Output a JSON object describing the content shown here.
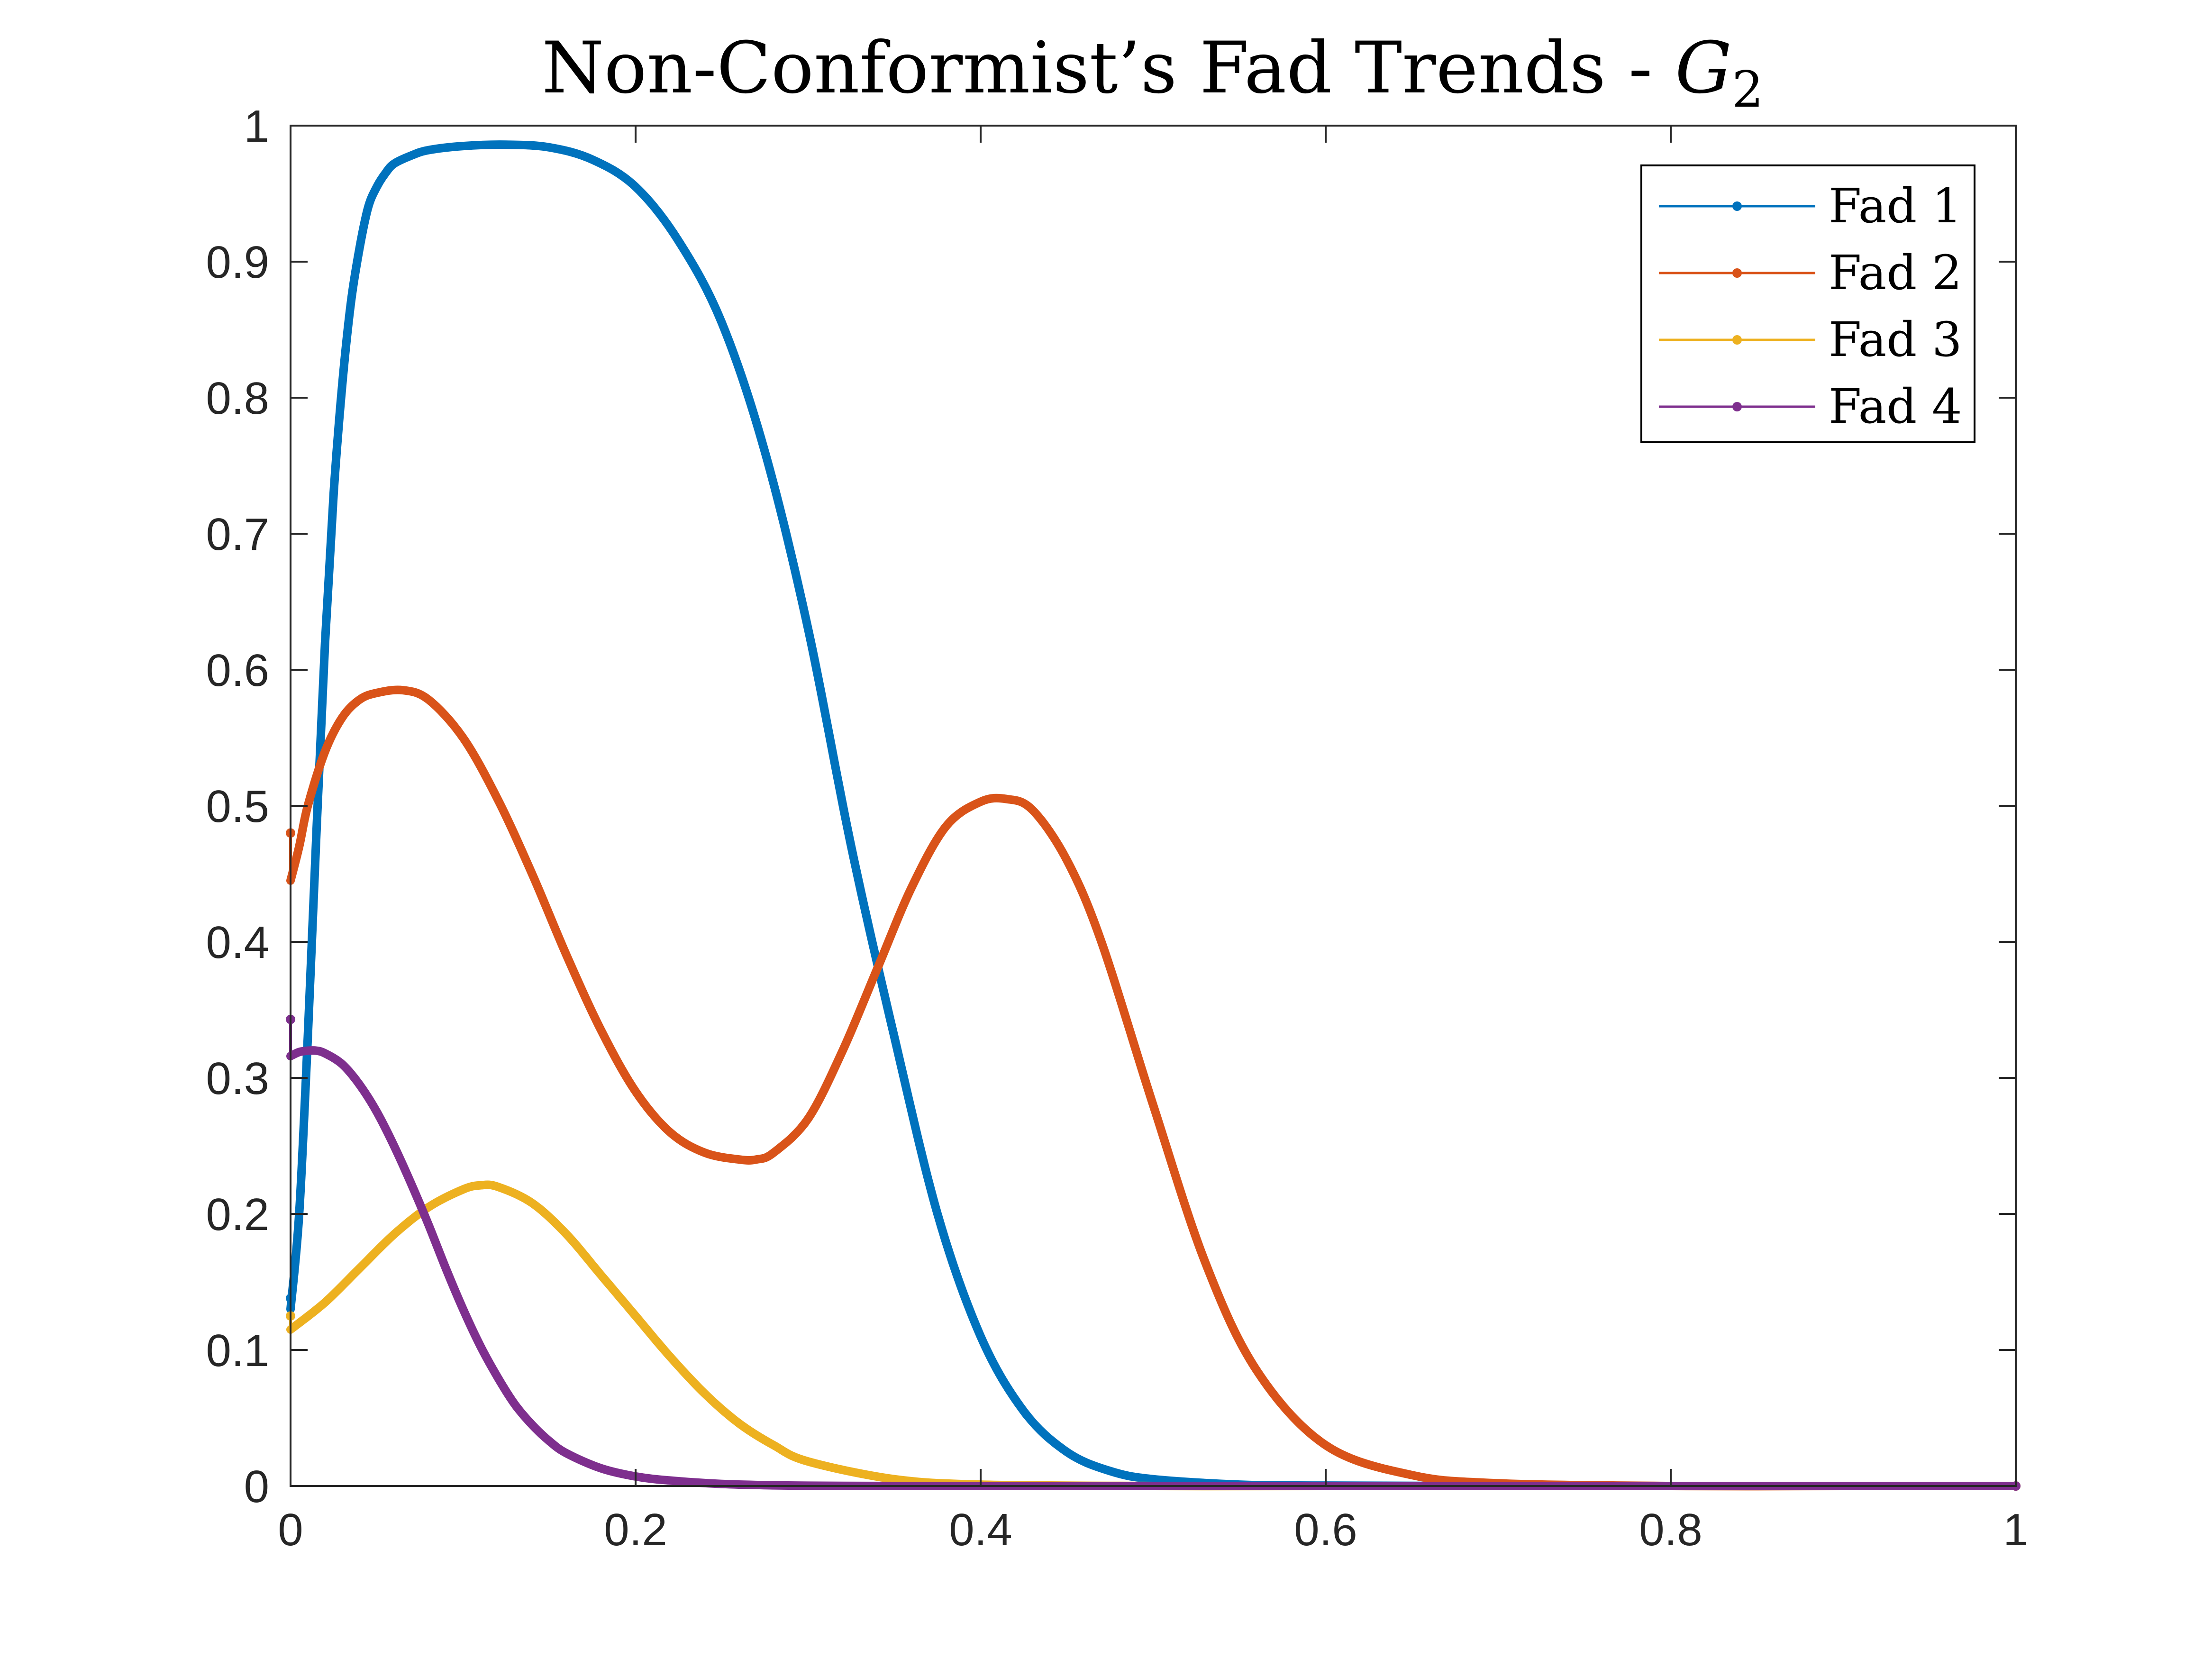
{
  "chart_data": {
    "type": "line",
    "title": "Non-Conformist’s Fad Trends - ",
    "title_math": "G",
    "title_math_sub": "2",
    "xlim": [
      0,
      1
    ],
    "ylim": [
      0,
      1
    ],
    "xticks": [
      0,
      0.2,
      0.4,
      0.6,
      0.8,
      1
    ],
    "xtick_labels": [
      "0",
      "0.2",
      "0.4",
      "0.6",
      "0.8",
      "1"
    ],
    "yticks": [
      0,
      0.1,
      0.2,
      0.3,
      0.4,
      0.5,
      0.6,
      0.7,
      0.8,
      0.9,
      1
    ],
    "ytick_labels": [
      "0",
      "0.1",
      "0.2",
      "0.3",
      "0.4",
      "0.5",
      "0.6",
      "0.7",
      "0.8",
      "0.9",
      "1"
    ],
    "grid": false,
    "legend_position": "top-right",
    "series": [
      {
        "name": "Fad 1",
        "color": "#0072BD",
        "x": [
          0,
          0.005,
          0.01,
          0.015,
          0.02,
          0.025,
          0.03,
          0.035,
          0.04,
          0.045,
          0.05,
          0.055,
          0.06,
          0.07,
          0.08,
          0.1,
          0.125,
          0.15,
          0.175,
          0.2,
          0.225,
          0.25,
          0.275,
          0.3,
          0.325,
          0.35,
          0.375,
          0.4,
          0.425,
          0.45,
          0.475,
          0.5,
          0.55,
          0.6,
          0.7,
          0.8,
          0.9,
          1.0
        ],
        "y": [
          0.13,
          0.2,
          0.33,
          0.48,
          0.62,
          0.73,
          0.81,
          0.87,
          0.91,
          0.94,
          0.955,
          0.965,
          0.972,
          0.978,
          0.982,
          0.985,
          0.986,
          0.984,
          0.975,
          0.955,
          0.915,
          0.855,
          0.76,
          0.63,
          0.47,
          0.33,
          0.2,
          0.11,
          0.055,
          0.025,
          0.011,
          0.005,
          0.001,
          0.0003,
          0.0,
          0.0,
          0.0,
          0.0
        ]
      },
      {
        "name": "Fad 2",
        "color": "#D95319",
        "x": [
          0,
          0.005,
          0.01,
          0.02,
          0.03,
          0.04,
          0.05,
          0.065,
          0.08,
          0.1,
          0.12,
          0.14,
          0.16,
          0.18,
          0.2,
          0.22,
          0.24,
          0.26,
          0.27,
          0.28,
          0.3,
          0.32,
          0.34,
          0.36,
          0.38,
          0.4,
          0.415,
          0.43,
          0.45,
          0.47,
          0.5,
          0.53,
          0.56,
          0.6,
          0.65,
          0.7,
          0.8,
          0.9,
          1.0
        ],
        "y": [
          0.445,
          0.47,
          0.5,
          0.54,
          0.565,
          0.578,
          0.583,
          0.585,
          0.578,
          0.55,
          0.505,
          0.45,
          0.39,
          0.335,
          0.29,
          0.26,
          0.245,
          0.24,
          0.24,
          0.245,
          0.27,
          0.32,
          0.38,
          0.44,
          0.485,
          0.503,
          0.505,
          0.497,
          0.46,
          0.4,
          0.28,
          0.165,
          0.085,
          0.03,
          0.008,
          0.002,
          0.0,
          0.0,
          0.0
        ]
      },
      {
        "name": "Fad 3",
        "color": "#EDB120",
        "x": [
          0,
          0.02,
          0.04,
          0.06,
          0.08,
          0.1,
          0.11,
          0.12,
          0.14,
          0.16,
          0.18,
          0.2,
          0.22,
          0.24,
          0.26,
          0.28,
          0.3,
          0.35,
          0.4,
          0.5,
          0.6,
          0.8,
          1.0
        ],
        "y": [
          0.115,
          0.135,
          0.16,
          0.185,
          0.205,
          0.218,
          0.221,
          0.22,
          0.208,
          0.185,
          0.155,
          0.125,
          0.095,
          0.068,
          0.046,
          0.03,
          0.018,
          0.005,
          0.001,
          0.0,
          0.0,
          0.0,
          0.0
        ]
      },
      {
        "name": "Fad 4",
        "color": "#7E2F8E",
        "x": [
          0,
          0.005,
          0.01,
          0.015,
          0.02,
          0.03,
          0.04,
          0.05,
          0.06,
          0.07,
          0.08,
          0.09,
          0.1,
          0.11,
          0.12,
          0.13,
          0.14,
          0.15,
          0.16,
          0.18,
          0.2,
          0.22,
          0.25,
          0.28,
          0.3,
          0.35,
          0.4,
          0.5,
          0.6,
          0.8,
          1.0
        ],
        "y": [
          0.316,
          0.319,
          0.32,
          0.32,
          0.318,
          0.31,
          0.295,
          0.275,
          0.25,
          0.222,
          0.192,
          0.16,
          0.13,
          0.103,
          0.08,
          0.06,
          0.045,
          0.033,
          0.024,
          0.013,
          0.007,
          0.004,
          0.0015,
          0.0005,
          0.0002,
          0.0,
          0.0,
          0.0,
          0.0,
          0.0,
          0.0
        ]
      }
    ],
    "initial_markers": [
      {
        "series": "Fad 1",
        "x": 0,
        "y": 0.138
      },
      {
        "series": "Fad 2",
        "x": 0,
        "y": 0.48
      },
      {
        "series": "Fad 3",
        "x": 0,
        "y": 0.125
      },
      {
        "series": "Fad 4",
        "x": 0,
        "y": 0.343
      }
    ]
  }
}
